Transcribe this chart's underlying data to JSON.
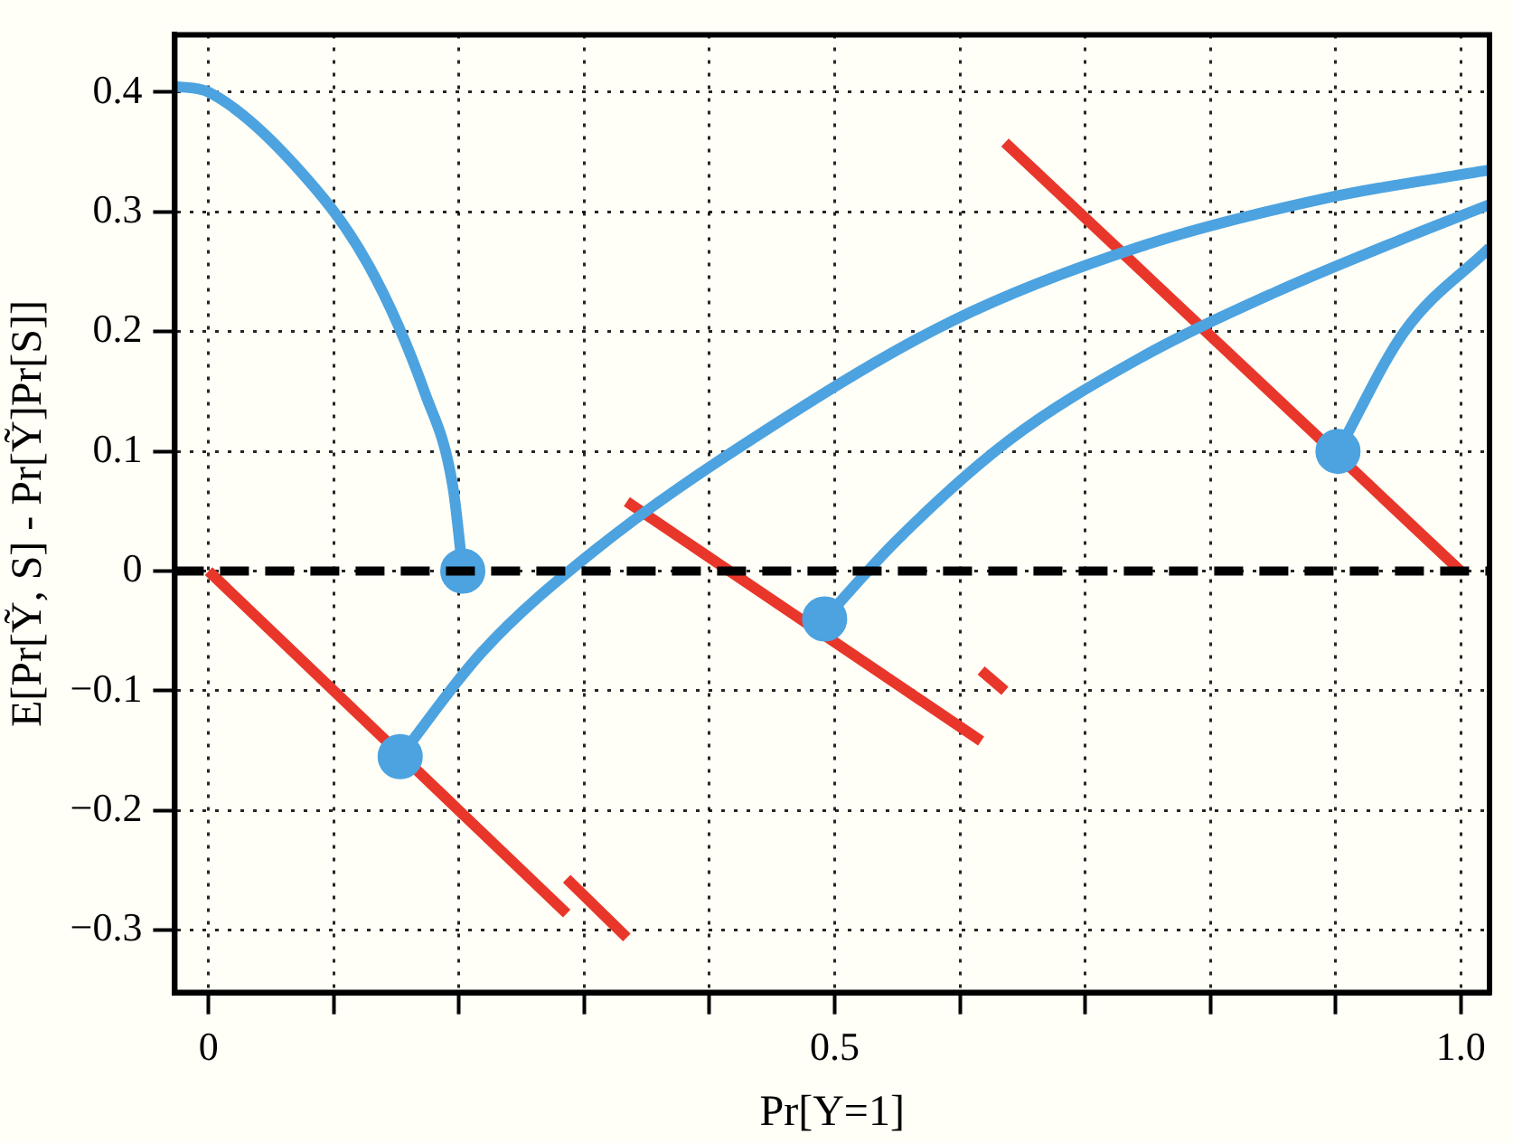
{
  "chart_data": {
    "type": "line",
    "xlabel": "Pr[Y=1]",
    "ylabel": "E[Pr[Ỹ, S] - Pr[Ỹ]Pr[S]]",
    "xlim": [
      -0.027,
      1.023
    ],
    "ylim": [
      -0.352,
      0.448
    ],
    "xticks": [
      0,
      {
        "value": 0.1,
        "label": null
      },
      {
        "value": 0.2,
        "label": null
      },
      {
        "value": 0.3,
        "label": null
      },
      {
        "value": 0.4,
        "label": null
      },
      0.5,
      {
        "value": 0.6,
        "label": null
      },
      {
        "value": 0.7,
        "label": null
      },
      {
        "value": 0.8,
        "label": null
      },
      {
        "value": 0.9,
        "label": null
      },
      {
        "value": 1.0,
        "label": "1.0"
      }
    ],
    "yticks": [
      {
        "value": -0.3,
        "label": "−0.3"
      },
      {
        "value": -0.2,
        "label": "−0.2"
      },
      {
        "value": -0.1,
        "label": "−0.1"
      },
      0,
      0.1,
      0.2,
      0.3,
      0.4
    ],
    "grid": true,
    "legend": false,
    "ref_lines": [
      {
        "axis": "y",
        "value": 0,
        "color": "#000000",
        "line_style": "dashed"
      }
    ],
    "series": [
      {
        "color": "#4ca3e0",
        "x": [
          -0.027,
          0.0,
          0.068,
          0.128,
          0.173,
          0.195,
          0.203
        ],
        "values": [
          0.405,
          0.4,
          0.34,
          0.255,
          0.148,
          0.071,
          0.0
        ]
      },
      {
        "color": "#4ca3e0",
        "x": [
          0.153,
          0.218,
          0.308,
          0.444,
          0.594,
          0.744,
          0.895,
          1.023
        ],
        "values": [
          -0.155,
          -0.068,
          0.017,
          0.117,
          0.209,
          0.271,
          0.312,
          0.335
        ]
      },
      {
        "color": "#4ca3e0",
        "x": [
          0.492,
          0.549,
          0.639,
          0.744,
          0.85,
          0.955,
          1.023
        ],
        "values": [
          -0.04,
          0.025,
          0.109,
          0.178,
          0.232,
          0.278,
          0.306
        ]
      },
      {
        "color": "#4ca3e0",
        "x": [
          0.902,
          0.955,
          1.023
        ],
        "values": [
          0.1,
          0.2,
          0.27
        ]
      },
      {
        "color": "#e8372a",
        "x": [
          0.0,
          0.286
        ],
        "values": [
          0.0,
          -0.286
        ]
      },
      {
        "color": "#e8372a",
        "x": [
          0.286,
          0.334
        ],
        "values": [
          -0.257,
          -0.306
        ]
      },
      {
        "color": "#e8372a",
        "x": [
          0.334,
          0.617
        ],
        "values": [
          0.058,
          -0.142
        ]
      },
      {
        "color": "#e8372a",
        "x": [
          0.617,
          0.636
        ],
        "values": [
          -0.083,
          -0.1
        ]
      },
      {
        "color": "#e8372a",
        "x": [
          0.636,
          1.0
        ],
        "values": [
          0.358,
          0.0
        ]
      },
      {
        "type": "scatter",
        "marker": "circle",
        "color": "#4ca3e0",
        "x": [
          0.203,
          0.153,
          0.492,
          0.902
        ],
        "values": [
          0.0,
          -0.155,
          -0.04,
          0.1
        ]
      }
    ]
  }
}
